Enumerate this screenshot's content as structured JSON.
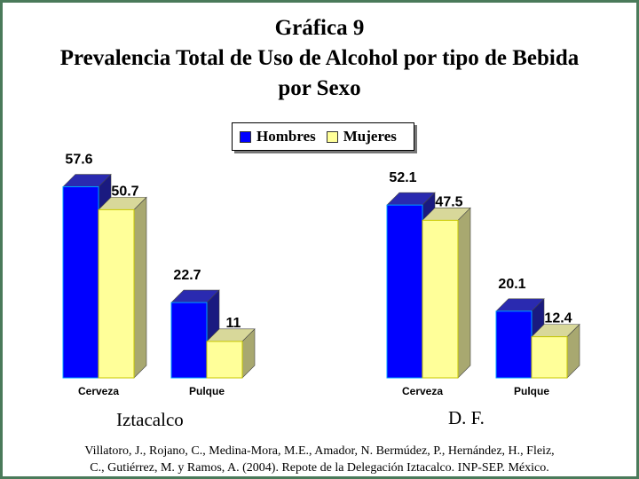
{
  "title": {
    "line1": "Gráfica 9",
    "line2": "Prevalencia Total de Uso de Alcohol por tipo de Bebida",
    "line3": "por Sexo"
  },
  "legend": {
    "hombres": "Hombres",
    "mujeres": "Mujeres"
  },
  "colors": {
    "hombres": "#0000ff",
    "mujeres": "#ffff99",
    "frame": "#4a7a5a"
  },
  "chart_data": {
    "type": "bar",
    "style": "3d-clustered",
    "legend_position": "top-center",
    "grid": false,
    "ylim": [
      0,
      60
    ],
    "groups": [
      {
        "label": "Iztacalco",
        "categories": [
          "Cerveza",
          "Pulque"
        ],
        "series": [
          {
            "name": "Hombres",
            "values": [
              57.6,
              22.7
            ]
          },
          {
            "name": "Mujeres",
            "values": [
              50.7,
              11
            ]
          }
        ]
      },
      {
        "label": "D. F.",
        "categories": [
          "Cerveza",
          "Pulque"
        ],
        "series": [
          {
            "name": "Hombres",
            "values": [
              52.1,
              20.1
            ]
          },
          {
            "name": "Mujeres",
            "values": [
              47.5,
              12.4
            ]
          }
        ]
      }
    ]
  },
  "citation": {
    "line1": "Villatoro, J., Rojano, C., Medina-Mora, M.E., Amador, N. Bermúdez, P., Hernández, H., Fleiz,",
    "line2": "C., Gutiérrez, M. y Ramos, A. (2004). Repote de la Delegación Iztacalco. INP-SEP. México."
  }
}
